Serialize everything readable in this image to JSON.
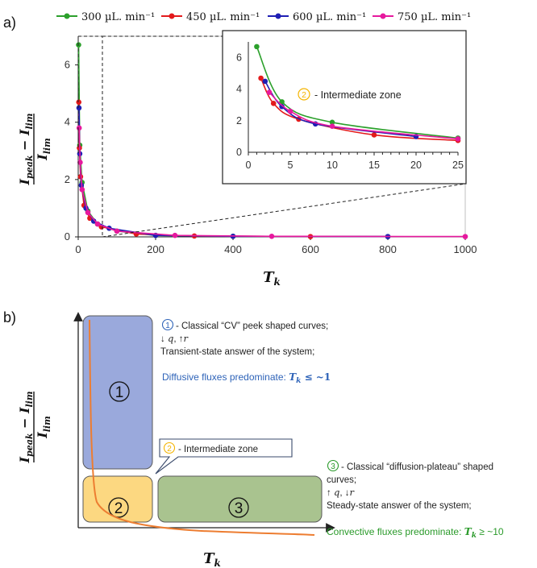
{
  "panel_a": {
    "label": "a)",
    "y_axis_label": {
      "num_I": "I",
      "num_sub1": "peak",
      "minus": "−",
      "num_I2": "I",
      "num_sub2": "lim",
      "den_I": "I",
      "den_sub": "lim"
    },
    "x_axis_label": {
      "base": "T",
      "sub": "k"
    },
    "legend_label_template": "µL. min⁻¹",
    "inset_annotation": {
      "number": "2",
      "text": "- Intermediate zone"
    }
  },
  "panel_b": {
    "label": "b)",
    "y_axis_label": {
      "num_I": "I",
      "num_sub1": "peak",
      "minus": "−",
      "num_I2": "I",
      "num_sub2": "lim",
      "den_I": "I",
      "den_sub": "lim"
    },
    "x_axis_label": {
      "base": "T",
      "sub": "k"
    },
    "zone1": {
      "number": "1",
      "title": "- Classical “CV” peek shaped curves;",
      "line2_a": "↓",
      "line2_b": "q",
      "line2_c": ", ↑",
      "line2_d": "r",
      "line3": "Transient-state answer of the system;",
      "highlight_text": "Diffusive fluxes predominate: ",
      "highlight_math": "T",
      "highlight_sub": "k",
      "highlight_rel": " ≤ ~1"
    },
    "zone2": {
      "number": "2",
      "callout_text": "- Intermediate zone"
    },
    "zone3": {
      "number": "3",
      "title_a": "- Classical “diffusion-plateau” shaped",
      "title_b": "curves;",
      "line2_a": "↑",
      "line2_b": "q",
      "line2_c": ", ↓",
      "line2_d": "r",
      "line3": "Steady-state answer of the system;",
      "highlight_text": "Convective fluxes predominate: ",
      "highlight_math": "T",
      "highlight_sub": "k",
      "highlight_rel": " ≥ ~10"
    },
    "colors": {
      "zone1_fill": "#9aa9dc",
      "zone2_fill": "#fcd881",
      "zone3_fill": "#a9c38f",
      "curve": "#ed7d31",
      "blue_text": "#2e63b8",
      "green_text": "#2a9a2a"
    }
  },
  "chart_data": [
    {
      "type": "scatter",
      "title": "",
      "xlabel": "T_k",
      "ylabel": "(I_peak − I_lim)/I_lim",
      "xlim": [
        0,
        1000
      ],
      "ylim": [
        0,
        7
      ],
      "xticks": [
        0,
        200,
        400,
        600,
        800,
        1000
      ],
      "yticks": [
        0,
        2,
        4,
        6
      ],
      "legend_position": "top",
      "series": [
        {
          "name": "300",
          "color": "#2ca02c",
          "x": [
            1,
            4,
            10,
            25,
            50,
            100,
            200,
            400,
            800
          ],
          "y": [
            6.7,
            3.2,
            1.9,
            0.9,
            0.45,
            0.2,
            0.05,
            0.02,
            0.01
          ]
        },
        {
          "name": "450",
          "color": "#e31a1c",
          "x": [
            1.5,
            3,
            6,
            15,
            30,
            60,
            150,
            300,
            600
          ],
          "y": [
            4.7,
            3.1,
            2.1,
            1.1,
            0.65,
            0.35,
            0.1,
            0.03,
            0.01
          ]
        },
        {
          "name": "600",
          "color": "#1f1fb4",
          "x": [
            2,
            4,
            8,
            20,
            40,
            80,
            200,
            400,
            800
          ],
          "y": [
            4.5,
            2.9,
            1.8,
            1.0,
            0.55,
            0.3,
            0.05,
            0.02,
            0.01
          ]
        },
        {
          "name": "750",
          "color": "#e6199e",
          "x": [
            2.5,
            5,
            10,
            25,
            50,
            100,
            250,
            500,
            1000
          ],
          "y": [
            3.8,
            2.6,
            1.65,
            0.85,
            0.45,
            0.2,
            0.05,
            0.02,
            0.01
          ]
        }
      ]
    },
    {
      "type": "line",
      "title": "",
      "xlabel": "T_k",
      "ylabel": "(I_peak − I_lim)/I_lim",
      "xlim": [
        0,
        25
      ],
      "ylim": [
        0,
        7
      ],
      "xticks": [
        0,
        5,
        10,
        15,
        20,
        25
      ],
      "yticks": [
        0,
        2,
        4,
        6
      ],
      "series": [
        {
          "name": "300",
          "color": "#2ca02c",
          "x": [
            1,
            4,
            10,
            25
          ],
          "y": [
            6.7,
            3.2,
            1.9,
            0.9
          ]
        },
        {
          "name": "450",
          "color": "#e31a1c",
          "x": [
            1.5,
            3,
            6,
            15,
            25
          ],
          "y": [
            4.7,
            3.1,
            2.1,
            1.1,
            0.75
          ]
        },
        {
          "name": "600",
          "color": "#1f1fb4",
          "x": [
            2,
            4,
            8,
            20
          ],
          "y": [
            4.5,
            2.9,
            1.8,
            1.0
          ]
        },
        {
          "name": "750",
          "color": "#e6199e",
          "x": [
            2.5,
            5,
            10,
            25
          ],
          "y": [
            3.8,
            2.6,
            1.65,
            0.85
          ]
        }
      ]
    }
  ]
}
